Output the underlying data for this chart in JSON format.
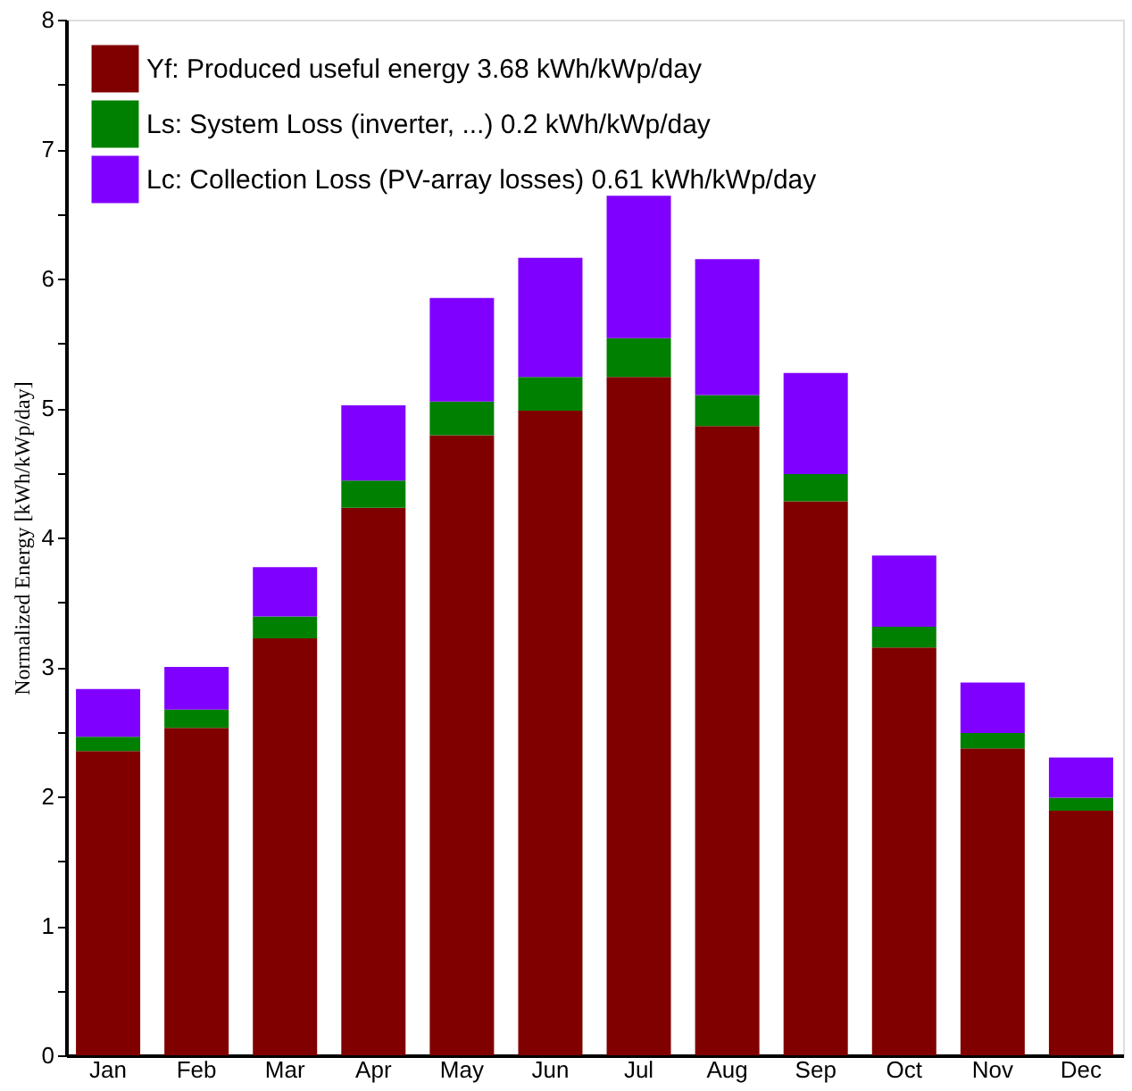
{
  "chart_data": {
    "type": "bar",
    "stacked": true,
    "ylabel": "Normalized Energy  [kWh/kWp/day]",
    "categories": [
      "Jan",
      "Feb",
      "Mar",
      "Apr",
      "May",
      "Jun",
      "Jul",
      "Aug",
      "Sep",
      "Oct",
      "Nov",
      "Dec"
    ],
    "series": [
      {
        "name": "Yf: Produced useful energy                                      3.68 kWh/kWp/day",
        "color": "#800000",
        "values": [
          2.35,
          2.53,
          3.22,
          4.23,
          4.79,
          4.98,
          5.24,
          4.86,
          4.28,
          3.15,
          2.37,
          1.89
        ]
      },
      {
        "name": "Ls:  System Loss (inverter, ...)                              0.2   kWh/kWp/day",
        "color": "#008000",
        "values": [
          0.11,
          0.14,
          0.17,
          0.21,
          0.26,
          0.26,
          0.3,
          0.24,
          0.21,
          0.16,
          0.12,
          0.1
        ]
      },
      {
        "name": "Lc:  Collection Loss (PV-array losses)     0.61 kWh/kWp/day",
        "color": "#8000ff",
        "values": [
          0.37,
          0.33,
          0.38,
          0.58,
          0.8,
          0.92,
          1.1,
          1.05,
          0.78,
          0.55,
          0.39,
          0.31
        ]
      }
    ],
    "ylim": [
      0,
      8
    ],
    "yticks": [
      0,
      {
        "value": 0.5,
        "label": null
      },
      1,
      {
        "value": 1.5,
        "label": null
      },
      2,
      {
        "value": 2.5,
        "label": null
      },
      3,
      {
        "value": 3.5,
        "label": null
      },
      4,
      {
        "value": 4.5,
        "label": null
      },
      5,
      {
        "value": 5.5,
        "label": null
      },
      6,
      {
        "value": 6.5,
        "label": null
      },
      7,
      {
        "value": 7.5,
        "label": null
      },
      8
    ],
    "grid": false,
    "legend": "top left"
  }
}
